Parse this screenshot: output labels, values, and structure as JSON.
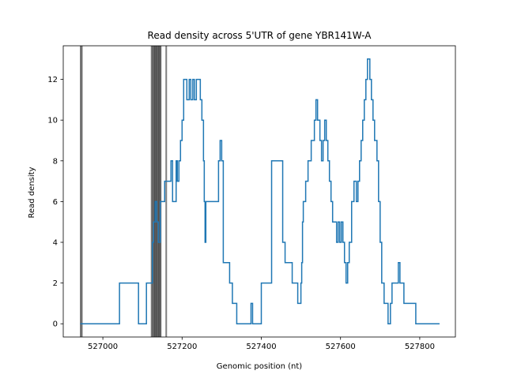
{
  "chart_data": {
    "type": "line",
    "title": "Read density across 5'UTR of gene YBR141W-A",
    "xlabel": "Genomic position (nt)",
    "ylabel": "Read density",
    "xlim": [
      526900,
      527890
    ],
    "ylim": [
      -0.65,
      13.65
    ],
    "xticks": [
      527000,
      527200,
      527400,
      527600,
      527800
    ],
    "yticks": [
      0,
      2,
      4,
      6,
      8,
      10,
      12
    ],
    "grid": false,
    "line_color": "#1f77b4",
    "marker_color": "#000000",
    "series": [
      {
        "step": "post",
        "x": [
          526943,
          527042,
          527090,
          527110,
          527125,
          527128,
          527132,
          527136,
          527140,
          527145,
          527150,
          527156,
          527160,
          527172,
          527176,
          527185,
          527188,
          527192,
          527196,
          527200,
          527204,
          527212,
          527218,
          527222,
          527227,
          527231,
          527236,
          527246,
          527250,
          527254,
          527256,
          527258,
          527260,
          527280,
          527292,
          527296,
          527300,
          527304,
          527320,
          527327,
          527334,
          527338,
          527374,
          527378,
          527400,
          527416,
          527426,
          527440,
          527454,
          527460,
          527478,
          527490,
          527492,
          527500,
          527502,
          527504,
          527506,
          527512,
          527518,
          527526,
          527534,
          527538,
          527542,
          527548,
          527552,
          527556,
          527560,
          527564,
          527568,
          527572,
          527576,
          527580,
          527590,
          527594,
          527598,
          527602,
          527606,
          527610,
          527614,
          527618,
          527622,
          527628,
          527634,
          527640,
          527644,
          527648,
          527652,
          527656,
          527660,
          527664,
          527668,
          527674,
          527678,
          527682,
          527686,
          527688,
          527692,
          527696,
          527700,
          527704,
          527710,
          527720,
          527726,
          527730,
          527740,
          527746,
          527750,
          527760,
          527780,
          527790,
          527794,
          527800,
          527810,
          527830,
          527838,
          527850
        ],
        "y": [
          0,
          2,
          0,
          2,
          4,
          5,
          6,
          5,
          4,
          6,
          6,
          7,
          7,
          8,
          6,
          8,
          7,
          8,
          9,
          10,
          12,
          11,
          12,
          11,
          12,
          11,
          12,
          11,
          10,
          8,
          6,
          4,
          6,
          6,
          8,
          9,
          8,
          3,
          2,
          1,
          1,
          0,
          1,
          0,
          2,
          2,
          8,
          8,
          4,
          3,
          2,
          2,
          1,
          2,
          3,
          5,
          6,
          7,
          8,
          9,
          10,
          11,
          10,
          9,
          8,
          9,
          10,
          9,
          8,
          7,
          6,
          5,
          4,
          5,
          4,
          5,
          4,
          3,
          2,
          3,
          4,
          6,
          7,
          6,
          7,
          8,
          9,
          10,
          11,
          12,
          13,
          12,
          11,
          10,
          9,
          9,
          8,
          6,
          4,
          2,
          1,
          0,
          1,
          2,
          2,
          3,
          2,
          1,
          1,
          0,
          0,
          0,
          0,
          0,
          0,
          0
        ]
      }
    ],
    "vertical_lines": [
      526944,
      526947,
      527123,
      527126,
      527129,
      527131,
      527134,
      527136,
      527139,
      527141,
      527144,
      527146,
      527160
    ]
  }
}
